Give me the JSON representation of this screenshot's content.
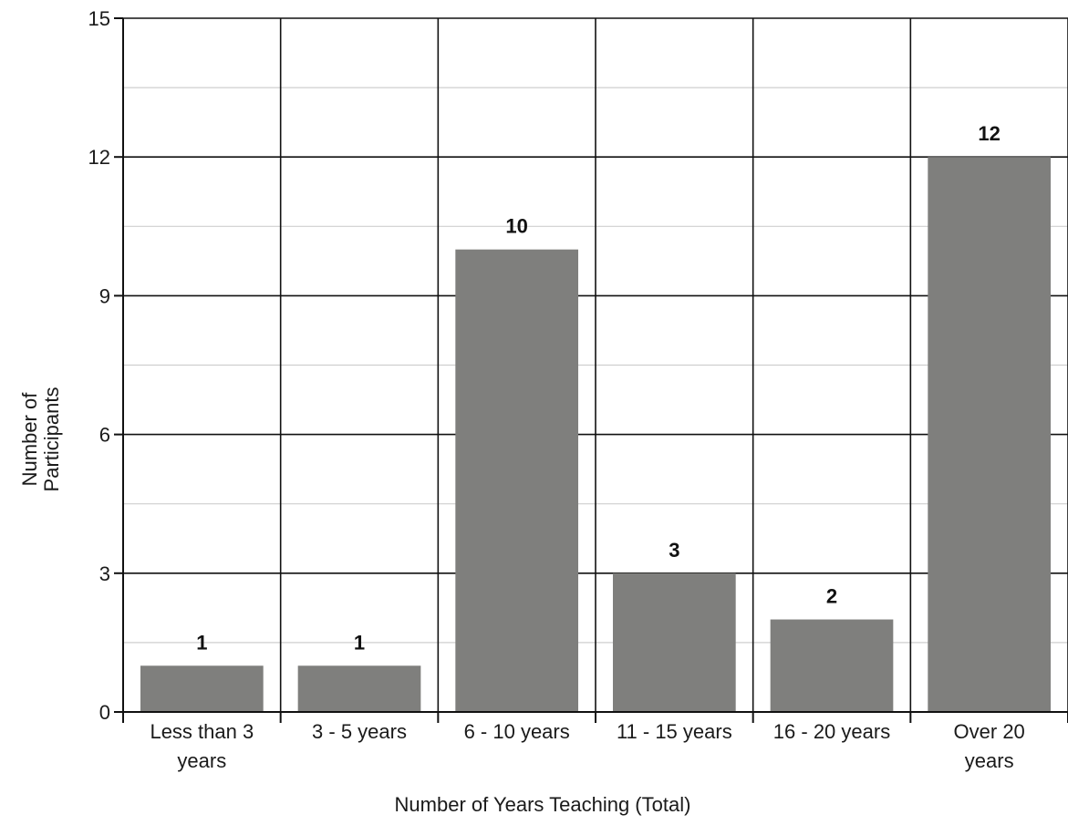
{
  "chart_data": {
    "type": "bar",
    "title": "",
    "xlabel": "Number of Years Teaching (Total)",
    "ylabel_lines": [
      "Number of",
      "Participants"
    ],
    "categories": [
      [
        "Less than 3",
        "years"
      ],
      [
        "3 - 5 years"
      ],
      [
        "6 - 10 years"
      ],
      [
        "11 - 15 years"
      ],
      [
        "16 - 20 years"
      ],
      [
        "Over 20",
        "years"
      ]
    ],
    "values": [
      1,
      1,
      10,
      3,
      2,
      12
    ],
    "data_labels": [
      "1",
      "1",
      "10",
      "3",
      "2",
      "12"
    ],
    "ylim": [
      0,
      15
    ],
    "yticks": [
      0,
      3,
      6,
      9,
      12,
      15
    ],
    "ytick_labels": [
      "0",
      "3",
      "6",
      "9",
      "12",
      "15"
    ],
    "grid": true,
    "minor_grid_step": 1.5,
    "bar_color": "#7f7f7d",
    "grid_color": "#111111",
    "minor_grid_color": "#cfcfcf"
  }
}
